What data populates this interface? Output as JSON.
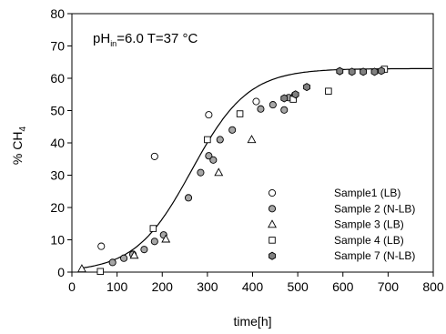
{
  "chart_data": {
    "type": "scatter",
    "xlabel": "time[h]",
    "ylabel_main": "% CH",
    "ylabel_sub": "4",
    "xlim": [
      0,
      800
    ],
    "ylim": [
      0,
      80
    ],
    "xticks": [
      0,
      100,
      200,
      300,
      400,
      500,
      600,
      700,
      800
    ],
    "yticks": [
      0,
      10,
      20,
      30,
      40,
      50,
      60,
      70,
      80
    ],
    "grid": false,
    "legend_position": "bottom-right",
    "annotation": {
      "prefix": "pH",
      "sub": "in",
      "suffix": "=6.0 T=37 °C"
    },
    "series": [
      {
        "name": "Sample1 (LB)",
        "marker": "circle-open",
        "points": [
          [
            65,
            8
          ],
          [
            183,
            35.8
          ],
          [
            303,
            48.7
          ],
          [
            408,
            52.8
          ],
          [
            493,
            54.7
          ]
        ]
      },
      {
        "name": "Sample 2 (N-LB)",
        "marker": "circle-filled",
        "points": [
          [
            90,
            3
          ],
          [
            115,
            4.3
          ],
          [
            135,
            5.5
          ],
          [
            160,
            7
          ],
          [
            183,
            9.5
          ],
          [
            203,
            11.5
          ],
          [
            258,
            23
          ],
          [
            285,
            30.8
          ],
          [
            303,
            36
          ],
          [
            313,
            34.7
          ],
          [
            328,
            41
          ],
          [
            355,
            44
          ],
          [
            418,
            50.5
          ],
          [
            445,
            51.8
          ],
          [
            470,
            50.2
          ],
          [
            480,
            54
          ]
        ]
      },
      {
        "name": "Sample 3 (LB)",
        "marker": "triangle-open",
        "points": [
          [
            22,
            1
          ],
          [
            138,
            5.2
          ],
          [
            208,
            10.2
          ],
          [
            325,
            30.8
          ],
          [
            398,
            41
          ]
        ]
      },
      {
        "name": "Sample 4 (LB)",
        "marker": "square-open",
        "points": [
          [
            63,
            0.2
          ],
          [
            180,
            13.5
          ],
          [
            300,
            41
          ],
          [
            372,
            49
          ],
          [
            490,
            53.5
          ],
          [
            568,
            56
          ],
          [
            692,
            62.8
          ]
        ]
      },
      {
        "name": "Sample 7 (N-LB)",
        "marker": "hexagon-filled",
        "points": [
          [
            470,
            53.8
          ],
          [
            495,
            55
          ],
          [
            520,
            57.3
          ],
          [
            593,
            62.2
          ],
          [
            620,
            62
          ],
          [
            645,
            62
          ],
          [
            670,
            62
          ],
          [
            685,
            62.3
          ]
        ]
      }
    ],
    "fit_curve": {
      "type": "sigmoid",
      "plateau": 63,
      "rate": 0.016,
      "midpoint": 265,
      "x_start": 22,
      "x_end": 800
    }
  }
}
